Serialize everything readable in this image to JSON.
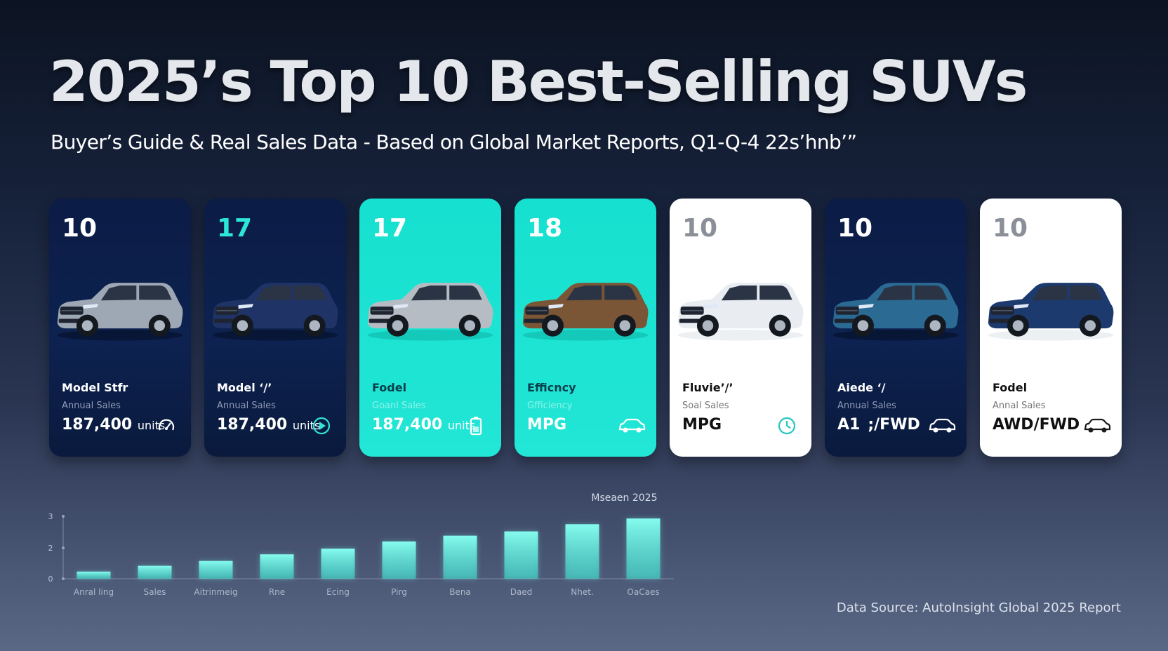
{
  "header": {
    "title": "2025’s Top 10 Best-Selling SUVs",
    "subtitle": "Buyer’s Guide & Real Sales Data - Based on Global Market Reports, Q1-Q-4 22s’hnb’”"
  },
  "cards": [
    {
      "rank": "10",
      "theme": "navy",
      "rank_highlight": false,
      "car_color": "#9ea7b4",
      "model": "Model Stfr",
      "label": "Annual Sales",
      "value": "187,400",
      "unit": "units",
      "icon": "gauge-icon"
    },
    {
      "rank": "17",
      "theme": "navy",
      "rank_highlight": true,
      "car_color": "#1f3366",
      "model": "Model ‘/’",
      "label": "Annual Sales",
      "value": "187,400",
      "unit": "units",
      "icon": "play-circle-icon"
    },
    {
      "rank": "17",
      "theme": "teal",
      "rank_highlight": false,
      "car_color": "#b6bcc4",
      "model": "Fodel",
      "label": "Goanl Sales",
      "value": "187,400",
      "unit": "units",
      "icon": "battery-icon"
    },
    {
      "rank": "18",
      "theme": "teal",
      "rank_highlight": false,
      "car_color": "#7a5636",
      "model": "Efficncy",
      "label": "Gfficiency",
      "value": "MPG",
      "unit": "",
      "icon": "car-icon"
    },
    {
      "rank": "10",
      "theme": "white",
      "rank_highlight": false,
      "car_color": "#e9edf2",
      "model": "Fluvie’/’",
      "label": "Soal Sales",
      "value": "MPG",
      "unit": "",
      "icon": "clock-icon"
    },
    {
      "rank": "10",
      "theme": "navy",
      "rank_highlight": false,
      "car_color": "#2b6a93",
      "model": "Aiede ‘/",
      "label": "Annual Sales",
      "value": "A1 ;/FWD",
      "unit": "",
      "icon": "car-icon"
    },
    {
      "rank": "10",
      "theme": "white",
      "rank_highlight": false,
      "car_color": "#1d3a6e",
      "model": "Fodel",
      "label": "Annal Sales",
      "value": "AWD/FWD",
      "unit": "",
      "icon": "car-icon"
    }
  ],
  "chart_data": {
    "type": "bar",
    "annotation": "Mseaen 2025",
    "y_tick_labels": [
      "3",
      "2",
      "0"
    ],
    "categories": [
      "Anral ling",
      "Sales",
      "Aitrinmeig",
      "Rne",
      "Ecing",
      "Pirg",
      "Bena",
      "Daed",
      "Nhet.",
      "OaCaes"
    ],
    "values": [
      0.25,
      0.45,
      0.62,
      0.85,
      1.05,
      1.3,
      1.5,
      1.65,
      1.9,
      2.1
    ],
    "ylim": [
      0,
      2.2
    ],
    "grid": false,
    "bar_color": "#6ff2e3"
  },
  "footer": {
    "source": "Data Source: AutoInsight Global 2025 Report"
  }
}
